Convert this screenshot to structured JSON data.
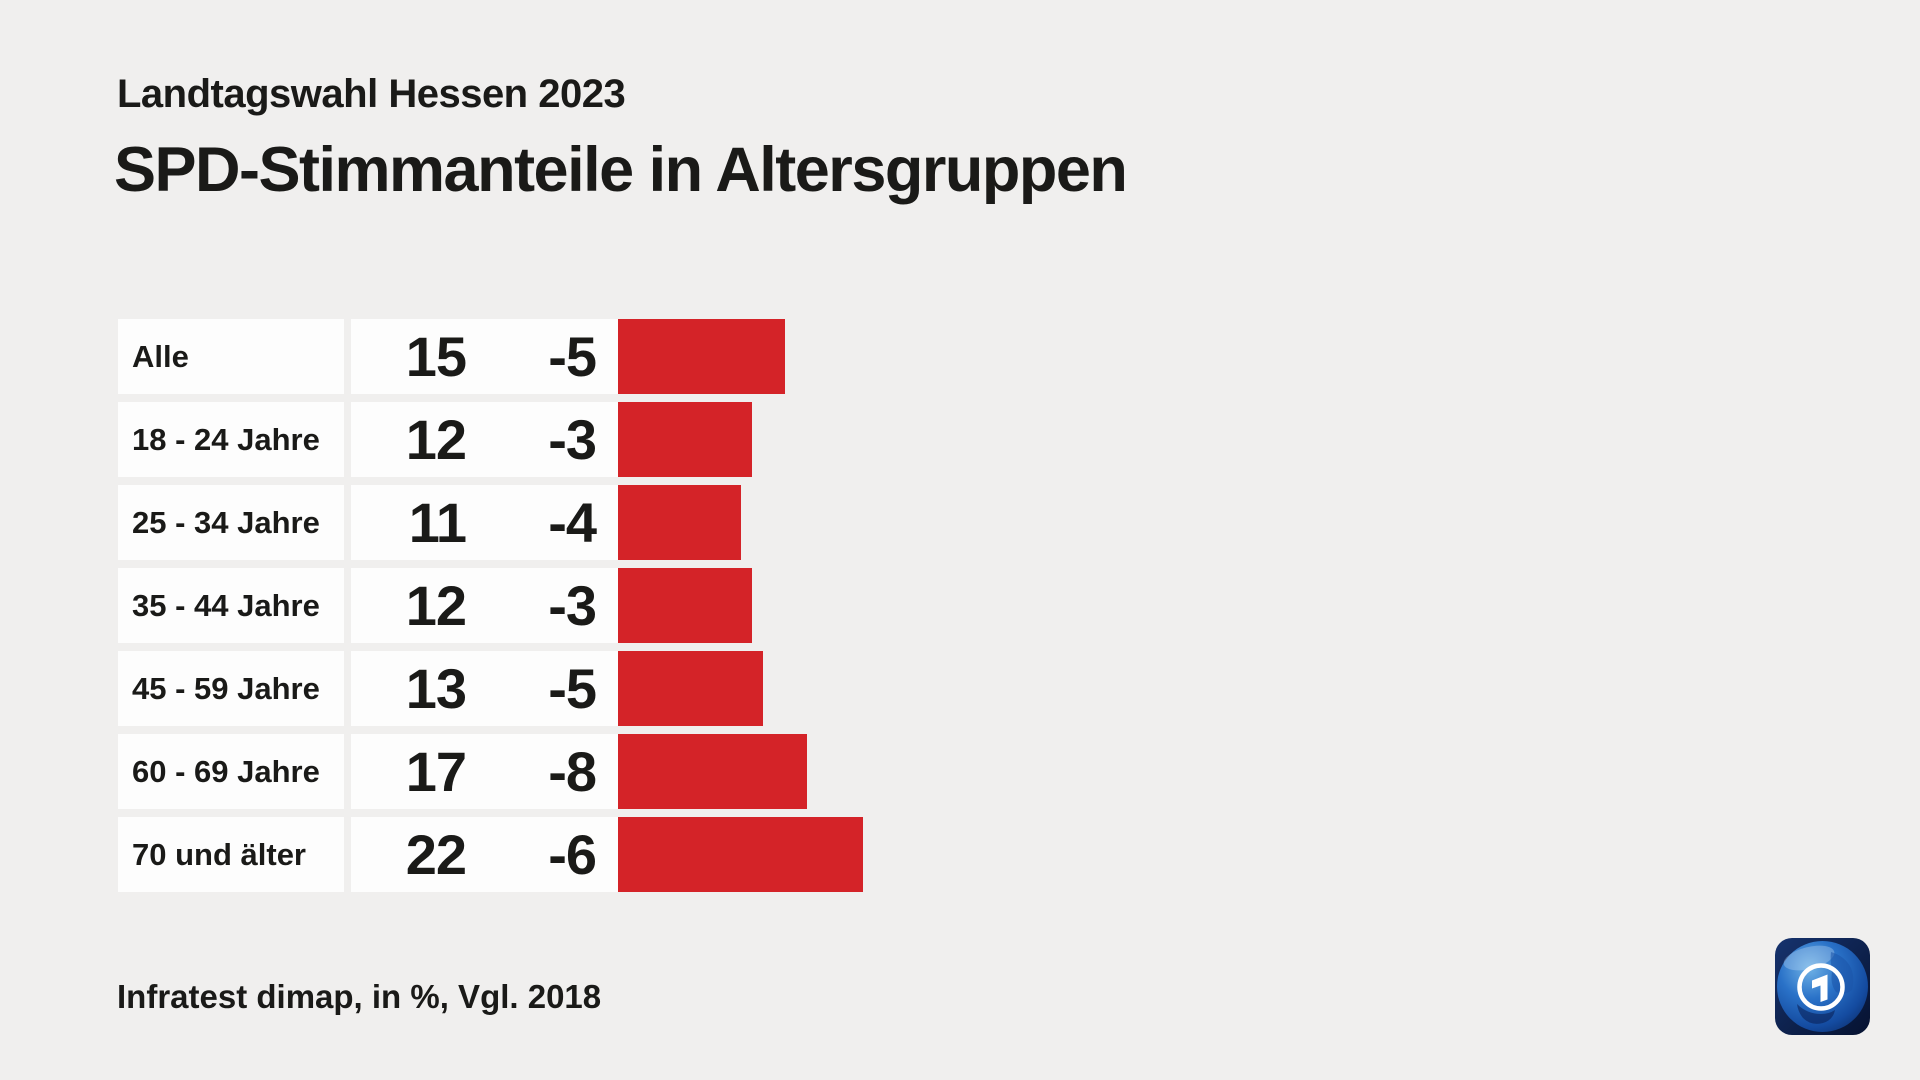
{
  "page": {
    "background": "#f0efee",
    "cell_background": "#fdfdfd",
    "text_color": "#1a1a18"
  },
  "header": {
    "subtitle": "Landtagswahl Hessen 2023",
    "title": "SPD-Stimmanteile in Altersgruppen"
  },
  "chart_data": {
    "type": "bar",
    "orientation": "horizontal",
    "title": "SPD-Stimmanteile in Altersgruppen",
    "subtitle": "Landtagswahl Hessen 2023",
    "categories": [
      "Alle",
      "18 - 24 Jahre",
      "25 - 34 Jahre",
      "35 - 44 Jahre",
      "45 - 59 Jahre",
      "60 - 69 Jahre",
      "70 und älter"
    ],
    "values": [
      15,
      12,
      11,
      12,
      13,
      17,
      22
    ],
    "changes": [
      "-5",
      "-3",
      "-4",
      "-3",
      "-5",
      "-8",
      "-6"
    ],
    "unit": "%",
    "comparison": "Vgl. 2018",
    "bar_color": "#d42328",
    "xlim": [
      0,
      26
    ],
    "grid": false,
    "legend": false
  },
  "footer": {
    "source": "Infratest dimap, in %, Vgl. 2018"
  },
  "logo": {
    "brand": "ARD tagesschau",
    "numeral": "1"
  }
}
